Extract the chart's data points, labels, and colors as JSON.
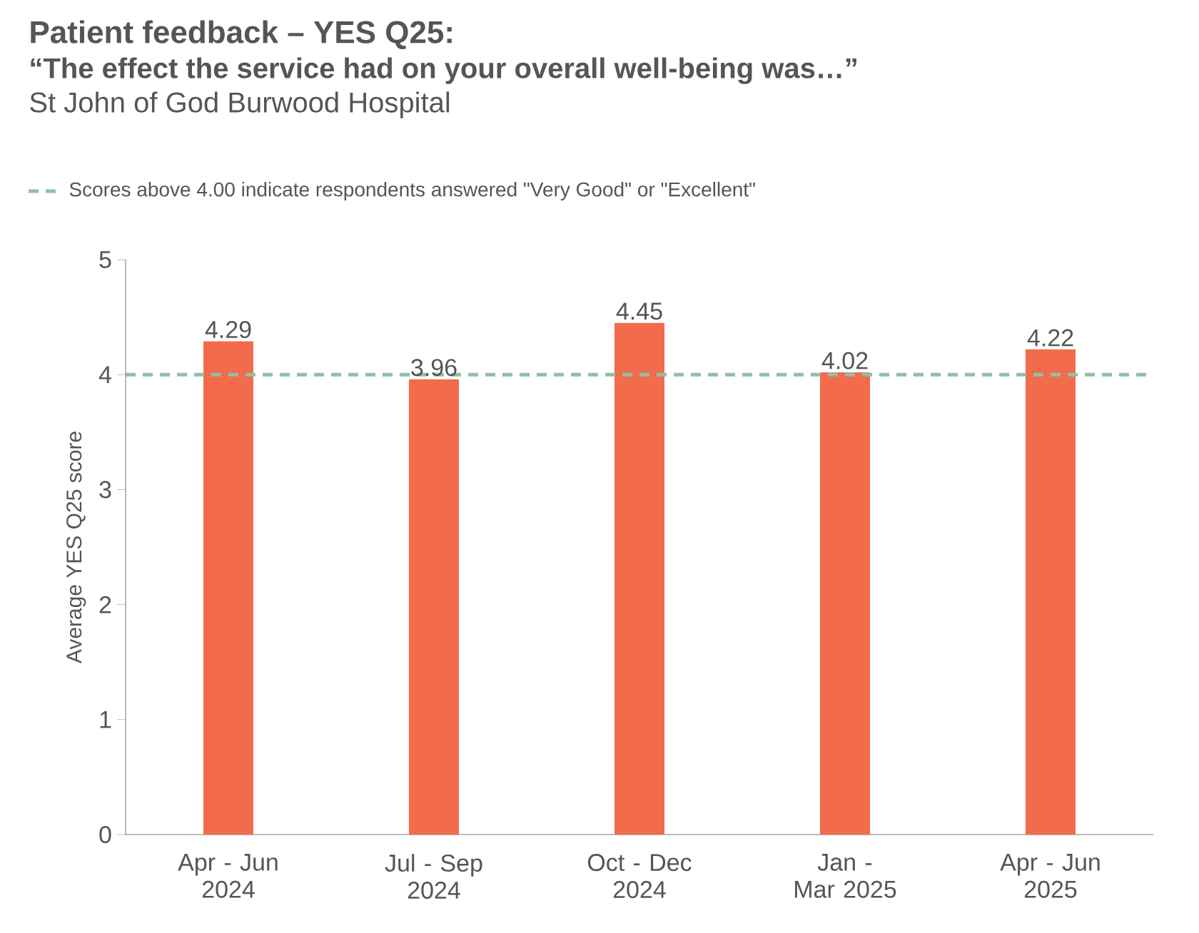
{
  "chart_data": {
    "type": "bar",
    "title": "Patient feedback – YES Q25:",
    "subtitle": "“The effect the service had on your overall well-being was…”",
    "annotations": [
      "St John of God Burwood Hospital"
    ],
    "categories": [
      "Apr - Jun 2024",
      "Jul - Sep 2024",
      "Oct - Dec 2024",
      "Jan - Mar 2025",
      "Apr - Jun 2025"
    ],
    "values": [
      4.29,
      3.96,
      4.45,
      4.02,
      4.22
    ],
    "color": "#f26b4a",
    "ylabel": "Average YES Q25 score",
    "ylim": [
      0,
      5
    ],
    "yticks": [
      0,
      1,
      2,
      3,
      4,
      5
    ],
    "data_labels": true,
    "legend": "top left",
    "ref_lines": [
      {
        "axis": "y",
        "value": 4,
        "label": "Scores above 4.00 indicate respondents answered \"Very Good\" or \"Excellent\"",
        "color": "#8fbfa8",
        "line_style": "dashed"
      }
    ]
  }
}
